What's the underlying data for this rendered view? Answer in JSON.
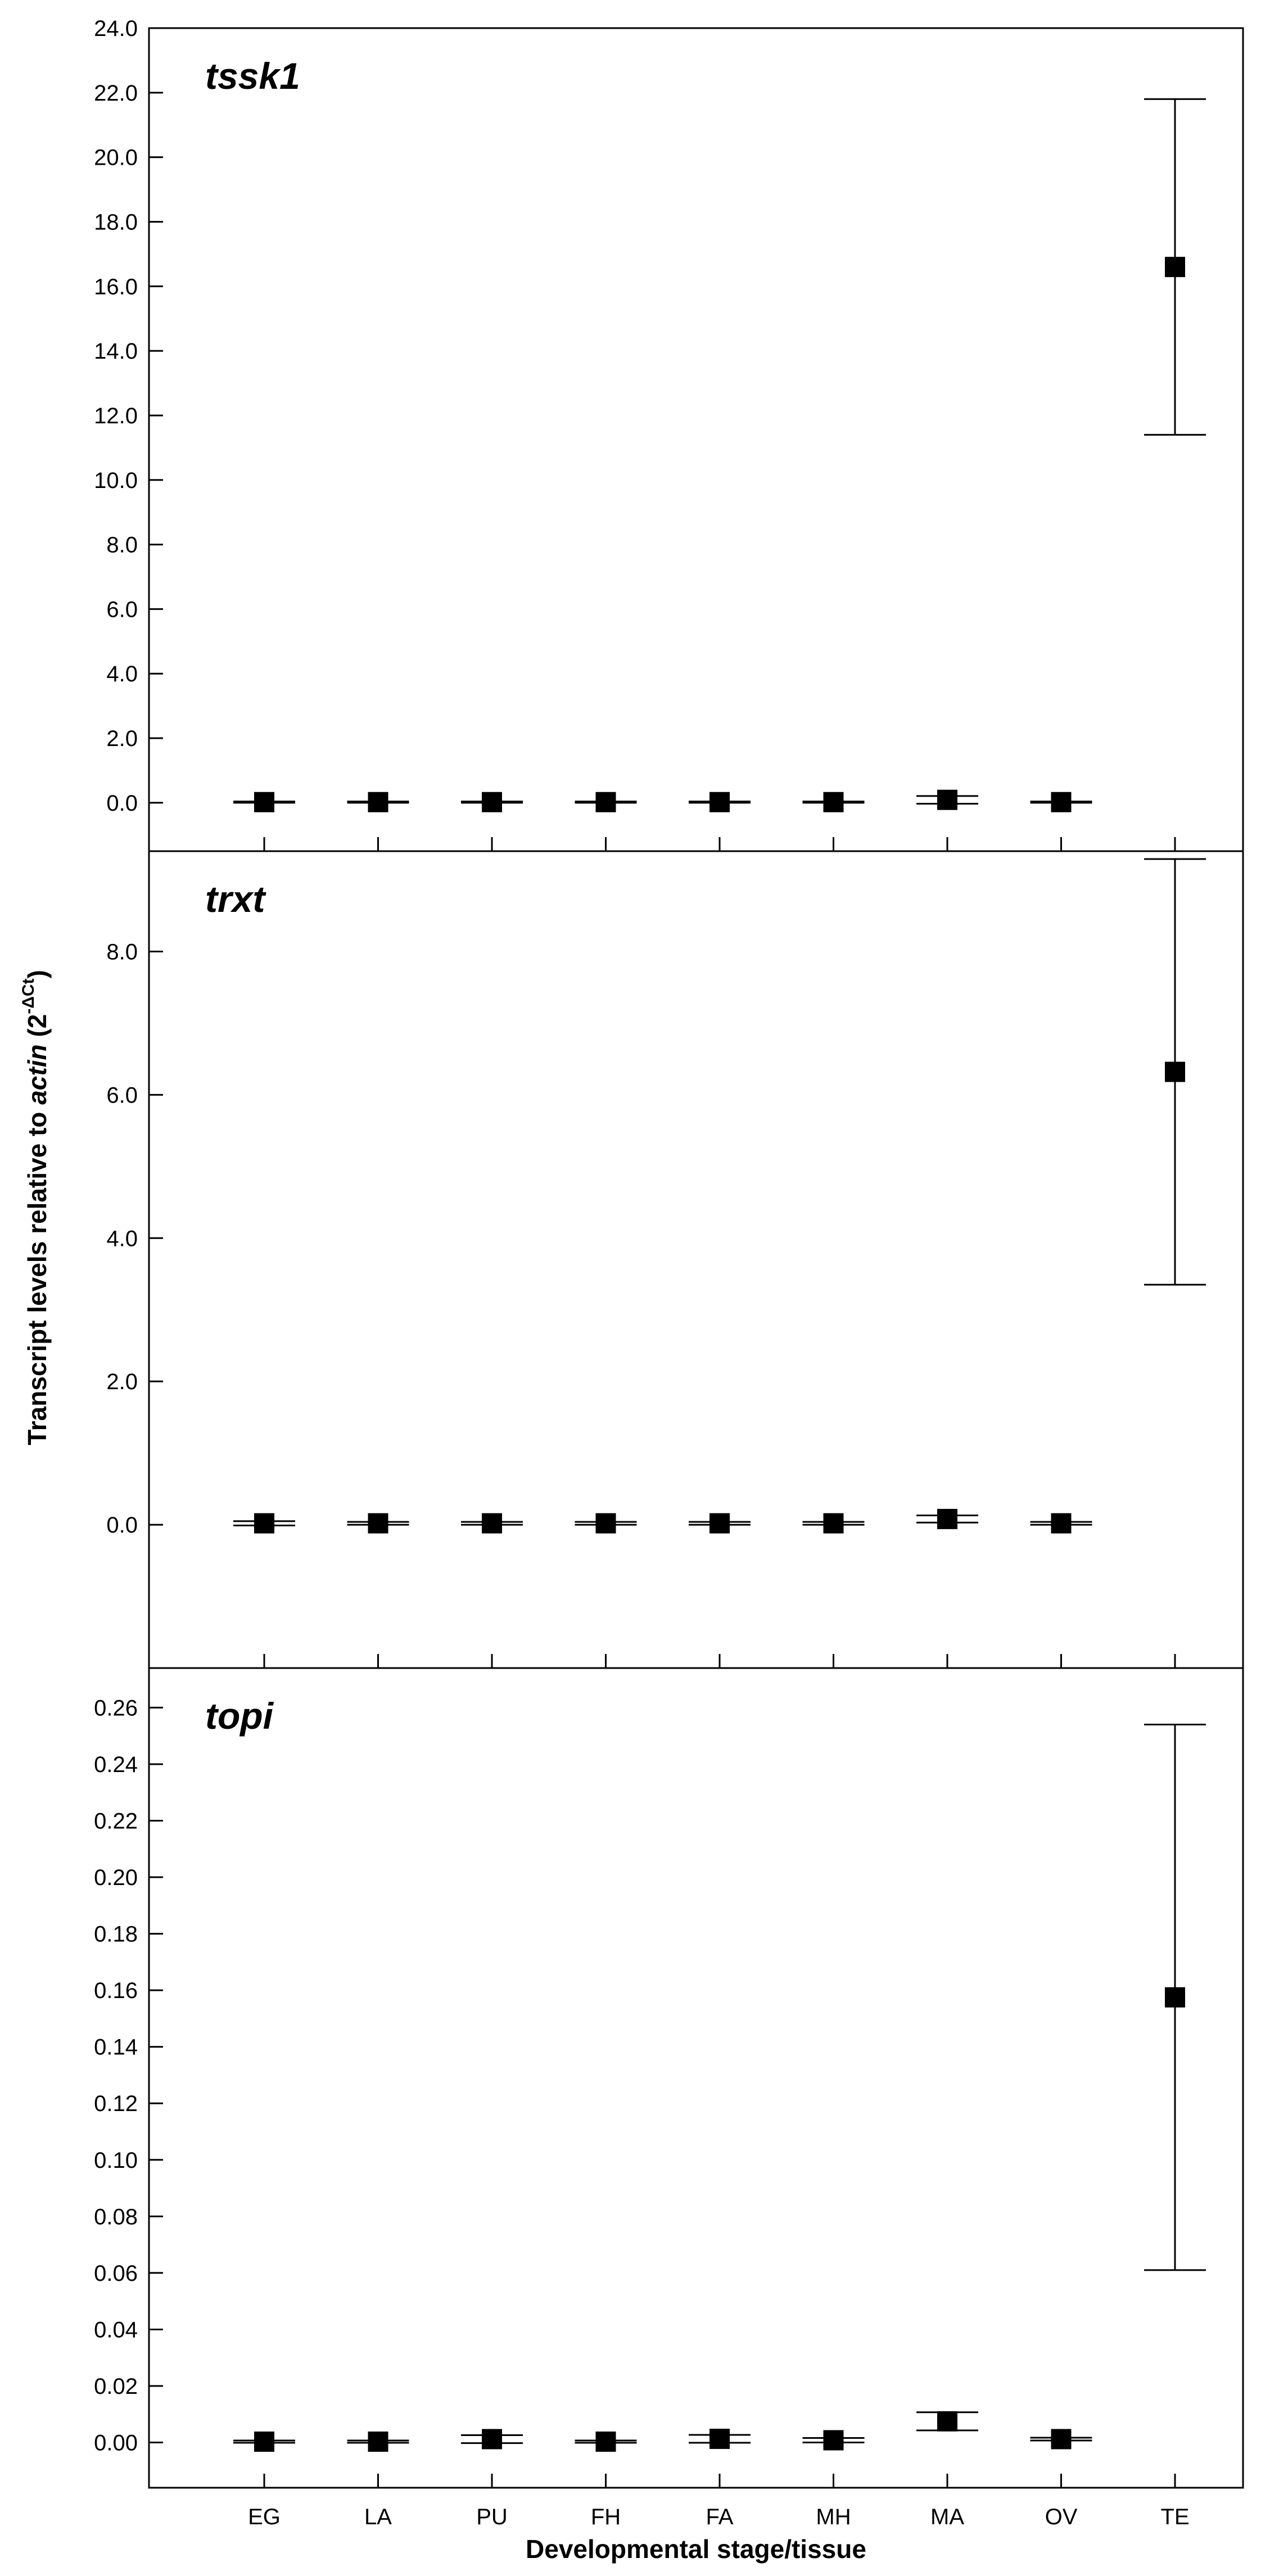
{
  "chart_data": {
    "type": "scatter",
    "xlabel": "Developmental stage/tissue",
    "ylabel": {
      "prefix": "Transcript levels relative to ",
      "italic": "actin",
      "paren_open": " (2",
      "superscript": "-ΔCt",
      "paren_close": ")"
    },
    "categories": [
      "EG",
      "LA",
      "PU",
      "FH",
      "FA",
      "MH",
      "MA",
      "OV",
      "TE"
    ],
    "panels": [
      {
        "title": "tssk1",
        "ylim": [
          -1.5,
          24.0
        ],
        "yticks": [
          0.0,
          2.0,
          4.0,
          6.0,
          8.0,
          10.0,
          12.0,
          14.0,
          16.0,
          18.0,
          20.0,
          22.0,
          24.0
        ],
        "ytick_labels": [
          "0.0",
          "2.0",
          "4.0",
          "6.0",
          "8.0",
          "10.0",
          "12.0",
          "14.0",
          "16.0",
          "18.0",
          "20.0",
          "22.0",
          "24.0"
        ],
        "values": [
          0.02,
          0.02,
          0.02,
          0.02,
          0.02,
          0.02,
          0.09,
          0.02,
          16.6
        ],
        "errors": [
          0.02,
          0.02,
          0.02,
          0.02,
          0.02,
          0.02,
          0.12,
          0.02,
          5.2
        ]
      },
      {
        "title": "trxt",
        "ylim": [
          -2.0,
          9.4
        ],
        "yticks": [
          0.0,
          2.0,
          4.0,
          6.0,
          8.0
        ],
        "ytick_labels": [
          "0.0",
          "2.0",
          "4.0",
          "6.0",
          "8.0"
        ],
        "values": [
          0.02,
          0.02,
          0.02,
          0.02,
          0.02,
          0.02,
          0.08,
          0.02,
          6.32
        ],
        "errors": [
          0.03,
          0.02,
          0.02,
          0.02,
          0.02,
          0.02,
          0.05,
          0.02,
          2.97
        ]
      },
      {
        "title": "topi",
        "ylim": [
          -0.016,
          0.274
        ],
        "yticks": [
          0.0,
          0.02,
          0.04,
          0.06,
          0.08,
          0.1,
          0.12,
          0.14,
          0.16,
          0.18,
          0.2,
          0.22,
          0.24,
          0.26
        ],
        "ytick_labels": [
          "0.00",
          "0.02",
          "0.04",
          "0.06",
          "0.08",
          "0.10",
          "0.12",
          "0.14",
          "0.16",
          "0.18",
          "0.20",
          "0.22",
          "0.24",
          "0.26"
        ],
        "values": [
          0.0003,
          0.0003,
          0.0012,
          0.0003,
          0.0013,
          0.0008,
          0.0075,
          0.0012,
          0.1575
        ],
        "errors": [
          0.0004,
          0.0004,
          0.0014,
          0.0004,
          0.0014,
          0.0008,
          0.0032,
          0.0005,
          0.0965
        ]
      }
    ],
    "grid": false,
    "legend": "none"
  }
}
